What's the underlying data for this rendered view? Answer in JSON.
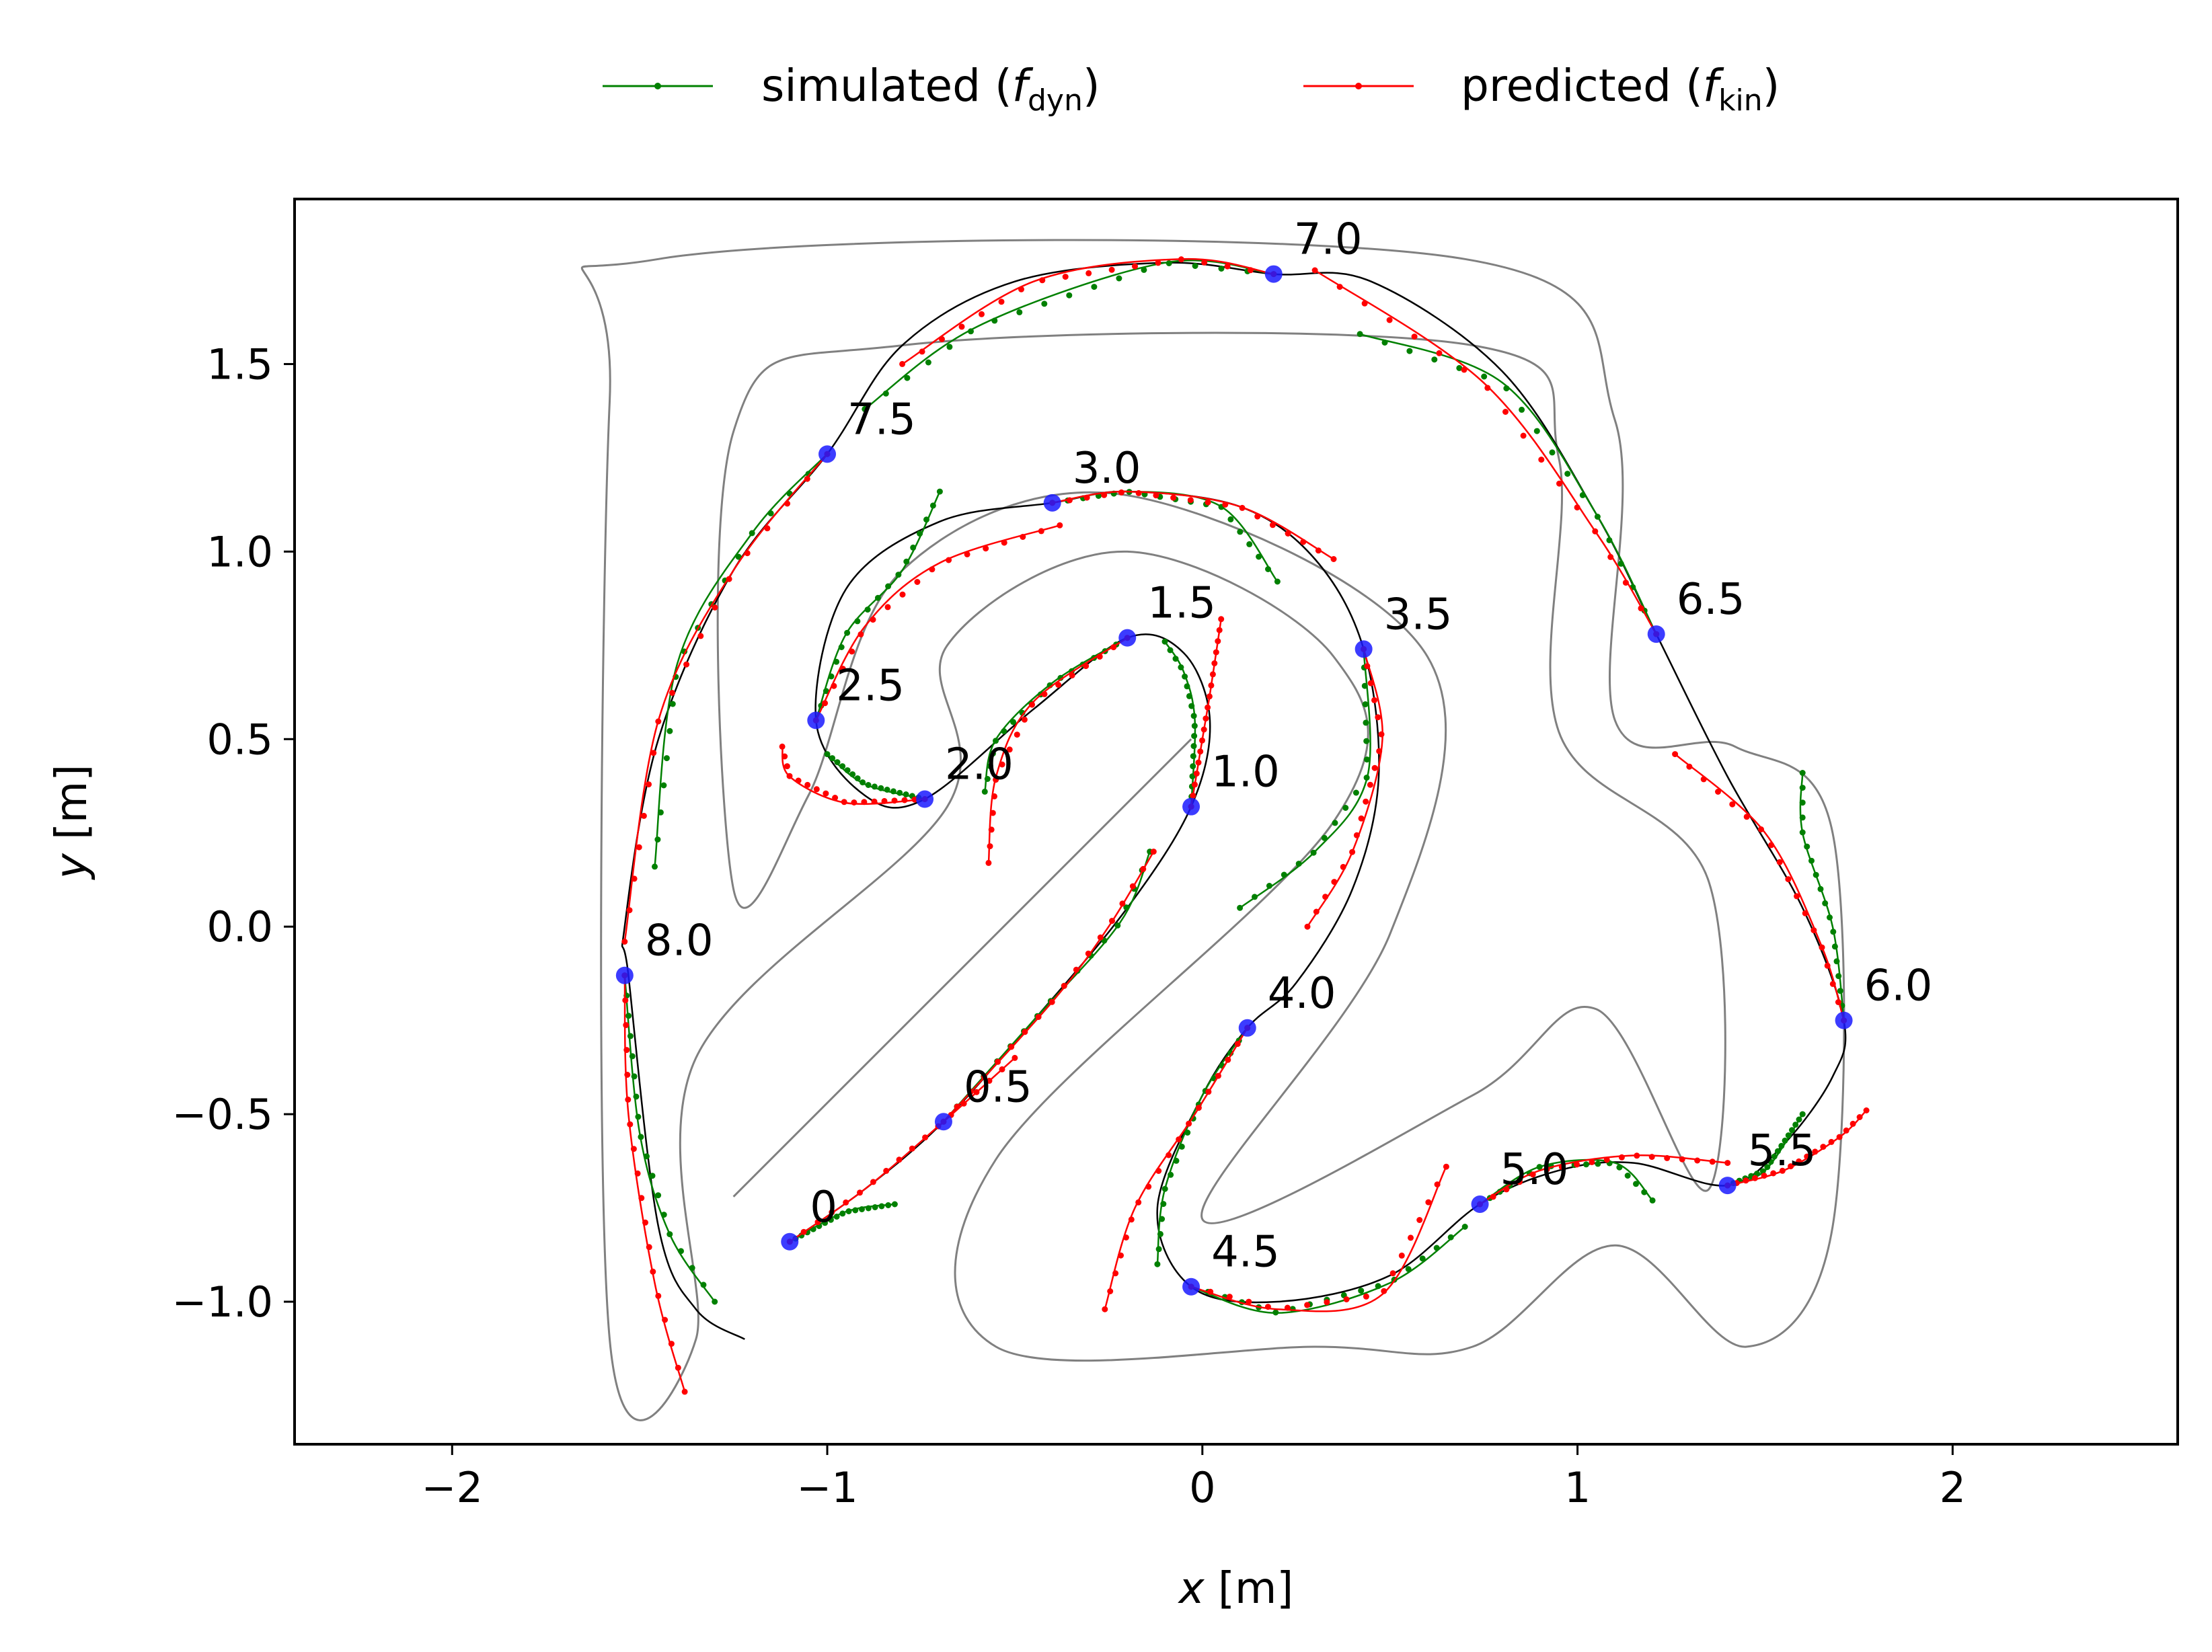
{
  "chart_data": {
    "type": "line",
    "xlabel_var": "x",
    "xlabel_unit": "[m]",
    "ylabel_var": "y",
    "ylabel_unit": "[m]",
    "xlim": [
      -2.42,
      2.6
    ],
    "ylim": [
      -1.38,
      1.94
    ],
    "xticks": [
      -2,
      -1,
      0,
      1,
      2
    ],
    "xtick_labels": [
      "−2",
      "−1",
      "0",
      "1",
      "2"
    ],
    "yticks": [
      -1.0,
      -0.5,
      0.0,
      0.5,
      1.0,
      1.5
    ],
    "ytick_labels": [
      "−1.0",
      "−0.5",
      "0.0",
      "0.5",
      "1.0",
      "1.5"
    ],
    "grid": false,
    "legend_position": "top-center, outside plot",
    "legend": [
      {
        "label": "simulated",
        "sym": "f",
        "sub": "dyn",
        "color": "#008000"
      },
      {
        "label": "predicted",
        "sym": "f",
        "sub": "kin",
        "color": "#ff0000"
      }
    ],
    "colors": {
      "simulated": "#008000",
      "predicted": "#ff0000",
      "reference": "#000000",
      "track": "#808080",
      "markers": "#1a1aff"
    },
    "track": {
      "outer_boundary": [
        [
          -1.45,
          1.78
        ],
        [
          0.7,
          1.78
        ],
        [
          1.1,
          1.35
        ],
        [
          1.1,
          0.55
        ],
        [
          1.42,
          0.48
        ],
        [
          1.68,
          0.25
        ],
        [
          1.68,
          -0.8
        ],
        [
          1.45,
          -1.12
        ],
        [
          1.1,
          -0.85
        ],
        [
          0.72,
          -1.12
        ],
        [
          0.3,
          -1.12
        ],
        [
          -0.55,
          -1.12
        ],
        [
          -0.55,
          -0.62
        ],
        [
          0.35,
          0.28
        ],
        [
          0.35,
          0.72
        ],
        [
          -0.2,
          1.0
        ],
        [
          -0.68,
          0.75
        ],
        [
          -0.68,
          0.32
        ],
        [
          -1.35,
          -0.35
        ],
        [
          -1.35,
          -1.1
        ],
        [
          -1.58,
          -1.1
        ],
        [
          -1.58,
          1.4
        ]
      ],
      "inner_boundary": [
        [
          -1.25,
          1.32
        ],
        [
          -0.8,
          1.55
        ],
        [
          0.72,
          1.55
        ],
        [
          0.95,
          1.25
        ],
        [
          0.95,
          0.52
        ],
        [
          1.35,
          0.12
        ],
        [
          1.35,
          -0.7
        ],
        [
          1.05,
          -0.22
        ],
        [
          0.72,
          -0.45
        ],
        [
          0.0,
          -0.78
        ],
        [
          0.5,
          -0.02
        ],
        [
          0.6,
          0.72
        ],
        [
          -0.2,
          1.15
        ],
        [
          -0.8,
          0.95
        ],
        [
          -1.05,
          0.35
        ],
        [
          -1.25,
          0.1
        ]
      ],
      "centerline_hairpin": [
        [
          -1.25,
          -0.72
        ],
        [
          -0.03,
          0.5
        ]
      ]
    },
    "reference_trajectory": {
      "x": [
        -1.1,
        -0.9,
        -0.69,
        -0.45,
        -0.2,
        -0.03,
        0.02,
        -0.05,
        -0.2,
        -0.45,
        -0.74,
        -0.9,
        -1.03,
        -0.95,
        -0.7,
        -0.4,
        -0.2,
        0.1,
        0.3,
        0.43,
        0.47,
        0.4,
        0.25,
        0.12,
        0.0,
        -0.12,
        -0.03,
        0.2,
        0.5,
        0.74,
        0.95,
        1.15,
        1.4,
        1.55,
        1.68,
        1.71,
        1.6,
        1.4,
        1.21,
        1.05,
        0.8,
        0.45,
        0.19,
        -0.1,
        -0.5,
        -0.8,
        -1.0,
        -1.25,
        -1.45,
        -1.54,
        -1.53,
        -1.45,
        -1.35,
        -1.22
      ],
      "y": [
        -0.84,
        -0.7,
        -0.52,
        -0.25,
        0.05,
        0.32,
        0.55,
        0.73,
        0.77,
        0.58,
        0.34,
        0.35,
        0.55,
        0.9,
        1.08,
        1.13,
        1.16,
        1.12,
        0.98,
        0.74,
        0.4,
        0.1,
        -0.15,
        -0.27,
        -0.45,
        -0.75,
        -0.96,
        -1.0,
        -0.93,
        -0.74,
        -0.65,
        -0.63,
        -0.69,
        -0.58,
        -0.4,
        -0.25,
        0.05,
        0.4,
        0.78,
        1.1,
        1.48,
        1.72,
        1.74,
        1.77,
        1.72,
        1.55,
        1.26,
        0.95,
        0.5,
        0.0,
        -0.13,
        -0.8,
        -1.02,
        -1.1
      ]
    },
    "time_markers": [
      {
        "t": "0",
        "x": -1.1,
        "y": -0.84
      },
      {
        "t": "0.5",
        "x": -0.69,
        "y": -0.52
      },
      {
        "t": "1.0",
        "x": -0.03,
        "y": 0.32
      },
      {
        "t": "1.5",
        "x": -0.2,
        "y": 0.77
      },
      {
        "t": "2.0",
        "x": -0.74,
        "y": 0.34
      },
      {
        "t": "2.5",
        "x": -1.03,
        "y": 0.55
      },
      {
        "t": "3.0",
        "x": -0.4,
        "y": 1.13
      },
      {
        "t": "3.5",
        "x": 0.43,
        "y": 0.74
      },
      {
        "t": "4.0",
        "x": 0.12,
        "y": -0.27
      },
      {
        "t": "4.5",
        "x": -0.03,
        "y": -0.96
      },
      {
        "t": "5.0",
        "x": 0.74,
        "y": -0.74
      },
      {
        "t": "5.5",
        "x": 1.4,
        "y": -0.69
      },
      {
        "t": "6.0",
        "x": 1.71,
        "y": -0.25
      },
      {
        "t": "6.5",
        "x": 1.21,
        "y": 0.78
      },
      {
        "t": "7.0",
        "x": 0.19,
        "y": 1.74
      },
      {
        "t": "7.5",
        "x": -1.0,
        "y": 1.26
      },
      {
        "t": "8.0",
        "x": -1.54,
        "y": -0.13
      }
    ],
    "series": [
      {
        "name": "simulated",
        "segments": [
          [
            [
              -1.1,
              -0.84
            ],
            [
              -0.95,
              -0.76
            ],
            [
              -0.82,
              -0.74
            ]
          ],
          [
            [
              -0.69,
              -0.52
            ],
            [
              -0.45,
              -0.25
            ],
            [
              -0.22,
              0.01
            ],
            [
              -0.14,
              0.2
            ]
          ],
          [
            [
              -0.03,
              0.32
            ],
            [
              -0.02,
              0.55
            ],
            [
              -0.05,
              0.68
            ],
            [
              -0.1,
              0.76
            ]
          ],
          [
            [
              -0.2,
              0.77
            ],
            [
              -0.4,
              0.65
            ],
            [
              -0.55,
              0.5
            ],
            [
              -0.58,
              0.36
            ]
          ],
          [
            [
              -0.74,
              0.34
            ],
            [
              -0.9,
              0.38
            ],
            [
              -1.0,
              0.46
            ]
          ],
          [
            [
              -1.03,
              0.55
            ],
            [
              -0.95,
              0.78
            ],
            [
              -0.8,
              0.95
            ],
            [
              -0.7,
              1.16
            ]
          ],
          [
            [
              -0.4,
              1.13
            ],
            [
              -0.2,
              1.16
            ],
            [
              0.05,
              1.12
            ],
            [
              0.2,
              0.92
            ]
          ],
          [
            [
              0.43,
              0.74
            ],
            [
              0.44,
              0.4
            ],
            [
              0.3,
              0.2
            ],
            [
              0.1,
              0.05
            ]
          ],
          [
            [
              0.12,
              -0.27
            ],
            [
              0.0,
              -0.45
            ],
            [
              -0.1,
              -0.7
            ],
            [
              -0.12,
              -0.9
            ]
          ],
          [
            [
              -0.03,
              -0.96
            ],
            [
              0.2,
              -1.03
            ],
            [
              0.5,
              -0.95
            ],
            [
              0.7,
              -0.8
            ]
          ],
          [
            [
              0.74,
              -0.74
            ],
            [
              0.9,
              -0.64
            ],
            [
              1.1,
              -0.63
            ],
            [
              1.2,
              -0.73
            ]
          ],
          [
            [
              1.4,
              -0.69
            ],
            [
              1.5,
              -0.65
            ],
            [
              1.6,
              -0.5
            ]
          ],
          [
            [
              1.71,
              -0.25
            ],
            [
              1.68,
              0.0
            ],
            [
              1.6,
              0.25
            ],
            [
              1.6,
              0.41
            ]
          ],
          [
            [
              1.21,
              0.78
            ],
            [
              1.05,
              1.1
            ],
            [
              0.8,
              1.45
            ],
            [
              0.42,
              1.58
            ]
          ],
          [
            [
              0.19,
              1.74
            ],
            [
              -0.1,
              1.77
            ],
            [
              -0.6,
              1.6
            ],
            [
              -0.9,
              1.38
            ]
          ],
          [
            [
              -1.0,
              1.26
            ],
            [
              -1.2,
              1.05
            ],
            [
              -1.4,
              0.7
            ],
            [
              -1.46,
              0.16
            ]
          ],
          [
            [
              -1.54,
              -0.13
            ],
            [
              -1.5,
              -0.55
            ],
            [
              -1.42,
              -0.82
            ],
            [
              -1.3,
              -1.0
            ]
          ]
        ]
      },
      {
        "name": "predicted",
        "segments": [
          [
            [
              -1.1,
              -0.84
            ],
            [
              -0.9,
              -0.7
            ],
            [
              -0.69,
              -0.52
            ],
            [
              -0.5,
              -0.35
            ]
          ],
          [
            [
              -0.69,
              -0.52
            ],
            [
              -0.4,
              -0.2
            ],
            [
              -0.25,
              0.0
            ],
            [
              -0.13,
              0.2
            ]
          ],
          [
            [
              -0.03,
              0.32
            ],
            [
              0.0,
              0.5
            ],
            [
              0.02,
              0.62
            ],
            [
              0.05,
              0.82
            ]
          ],
          [
            [
              -0.2,
              0.77
            ],
            [
              -0.45,
              0.6
            ],
            [
              -0.55,
              0.4
            ],
            [
              -0.57,
              0.17
            ]
          ],
          [
            [
              -0.74,
              0.34
            ],
            [
              -0.95,
              0.33
            ],
            [
              -1.1,
              0.4
            ],
            [
              -1.12,
              0.48
            ]
          ],
          [
            [
              -1.03,
              0.55
            ],
            [
              -0.9,
              0.8
            ],
            [
              -0.7,
              0.97
            ],
            [
              -0.38,
              1.07
            ]
          ],
          [
            [
              -0.4,
              1.13
            ],
            [
              -0.2,
              1.16
            ],
            [
              0.1,
              1.12
            ],
            [
              0.35,
              0.98
            ]
          ],
          [
            [
              0.43,
              0.74
            ],
            [
              0.48,
              0.5
            ],
            [
              0.4,
              0.2
            ],
            [
              0.28,
              0.0
            ]
          ],
          [
            [
              0.12,
              -0.27
            ],
            [
              -0.02,
              -0.5
            ],
            [
              -0.18,
              -0.75
            ],
            [
              -0.26,
              -1.02
            ]
          ],
          [
            [
              -0.03,
              -0.96
            ],
            [
              0.2,
              -1.02
            ],
            [
              0.48,
              -0.98
            ],
            [
              0.65,
              -0.64
            ]
          ],
          [
            [
              0.74,
              -0.74
            ],
            [
              0.9,
              -0.65
            ],
            [
              1.15,
              -0.61
            ],
            [
              1.4,
              -0.63
            ]
          ],
          [
            [
              1.4,
              -0.69
            ],
            [
              1.55,
              -0.65
            ],
            [
              1.7,
              -0.56
            ],
            [
              1.77,
              -0.49
            ]
          ],
          [
            [
              1.71,
              -0.25
            ],
            [
              1.65,
              -0.05
            ],
            [
              1.5,
              0.25
            ],
            [
              1.26,
              0.46
            ]
          ],
          [
            [
              1.21,
              0.78
            ],
            [
              1.05,
              1.05
            ],
            [
              0.75,
              1.45
            ],
            [
              0.3,
              1.75
            ]
          ],
          [
            [
              0.19,
              1.74
            ],
            [
              -0.05,
              1.78
            ],
            [
              -0.45,
              1.72
            ],
            [
              -0.8,
              1.5
            ]
          ],
          [
            [
              -1.0,
              1.26
            ],
            [
              -1.25,
              0.95
            ],
            [
              -1.45,
              0.55
            ],
            [
              -1.54,
              -0.04
            ]
          ],
          [
            [
              -1.54,
              -0.13
            ],
            [
              -1.53,
              -0.5
            ],
            [
              -1.46,
              -0.95
            ],
            [
              -1.38,
              -1.24
            ]
          ]
        ]
      }
    ]
  }
}
